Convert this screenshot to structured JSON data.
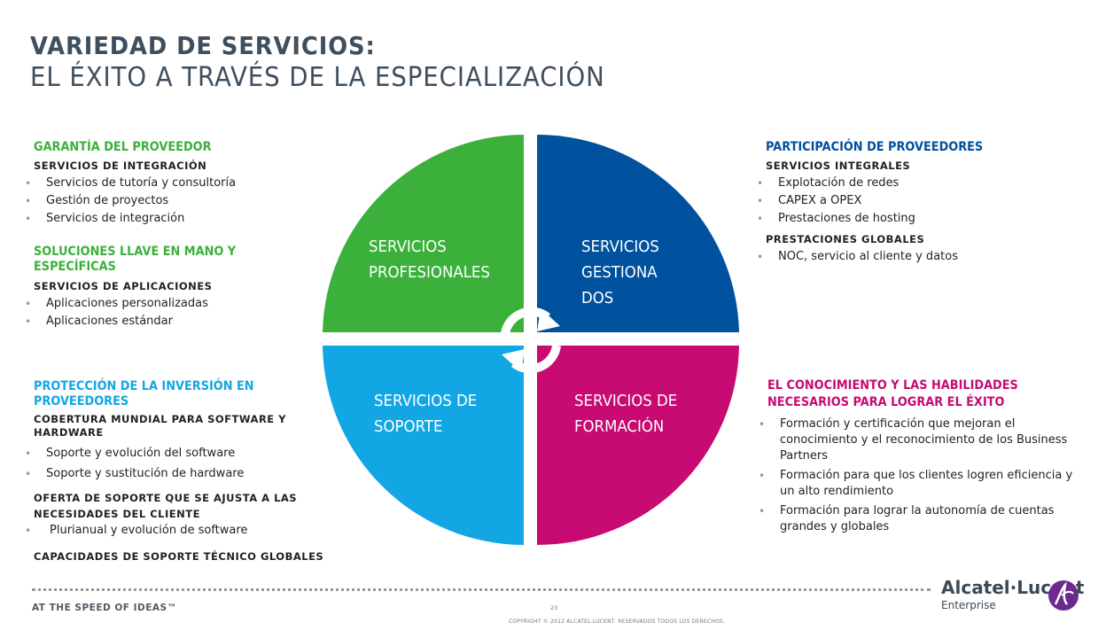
{
  "title": {
    "line1": "VARIEDAD DE SERVICIOS:",
    "line2": "EL ÉXITO A TRAVÉS DE LA ESPECIALIZACIÓN"
  },
  "left_top": {
    "heading": "GARANTÍA DEL PROVEEDOR",
    "sub": "SERVICIOS DE INTEGRACIÓN",
    "items": [
      "Servicios de tutoría y consultoría",
      "Gestión de proyectos",
      "Servicios de integración"
    ]
  },
  "left_mid": {
    "heading": "SOLUCIONES LLAVE EN MANO Y ESPECÍFICAS",
    "sub": "SERVICIOS DE APLICACIONES",
    "items": [
      "Aplicaciones personalizadas",
      "Aplicaciones estándar"
    ]
  },
  "left_bottom": {
    "heading": "PROTECCIÓN DE LA INVERSIÓN EN PROVEEDORES",
    "sub1": "COBERTURA MUNDIAL PARA SOFTWARE Y HARDWARE",
    "items1": [
      "Soporte y evolución del software",
      "Soporte y sustitución de hardware"
    ],
    "sub2": "OFERTA DE SOPORTE QUE SE AJUSTA A LAS NECESIDADES DEL CLIENTE",
    "items2": [
      "Plurianual y evolución de software"
    ],
    "sub3": "CAPACIDADES DE SOPORTE TÉCNICO GLOBALES"
  },
  "right_top": {
    "heading": "PARTICIPACIÓN DE PROVEEDORES",
    "sub1": "SERVICIOS INTEGRALES",
    "items1": [
      "Explotación de redes",
      "CAPEX a OPEX",
      "Prestaciones de hosting"
    ],
    "sub2": "PRESTACIONES GLOBALES",
    "items2": [
      "NOC, servicio al cliente y datos"
    ]
  },
  "right_bottom": {
    "heading": "EL CONOCIMIENTO Y LAS HABILIDADES NECESARIOS PARA LOGRAR EL ÉXITO",
    "items": [
      "Formación y certificación que mejoran el conocimiento y el reconocimiento de los Business Partners",
      "Formación para que los clientes logren eficiencia y un alto rendimiento",
      "Formación para lograr la autonomía de cuentas grandes y globales"
    ]
  },
  "wheel": {
    "professional": "SERVICIOS PROFESIONALES",
    "managed": "SERVICIOS GESTIONA DOS",
    "support": "SERVICIOS DE SOPORTE",
    "training": "SERVICIOS DE FORMACIÓN"
  },
  "colors": {
    "green": "#3bb13b",
    "blue": "#00519e",
    "cyan": "#13a6e4",
    "magenta": "#c80a73"
  },
  "footer": {
    "tagline": "AT THE SPEED OF IDEAS™",
    "page_number": "23",
    "copyright": "COPYRIGHT © 2012 ALCATEL-LUCENT. RESERVADOS TODOS LOS DERECHOS.",
    "brand": "Alcatel·Lucent",
    "brand_sub": "Enterprise",
    "logo_icon": "alcatel-lucent-logo-icon"
  }
}
